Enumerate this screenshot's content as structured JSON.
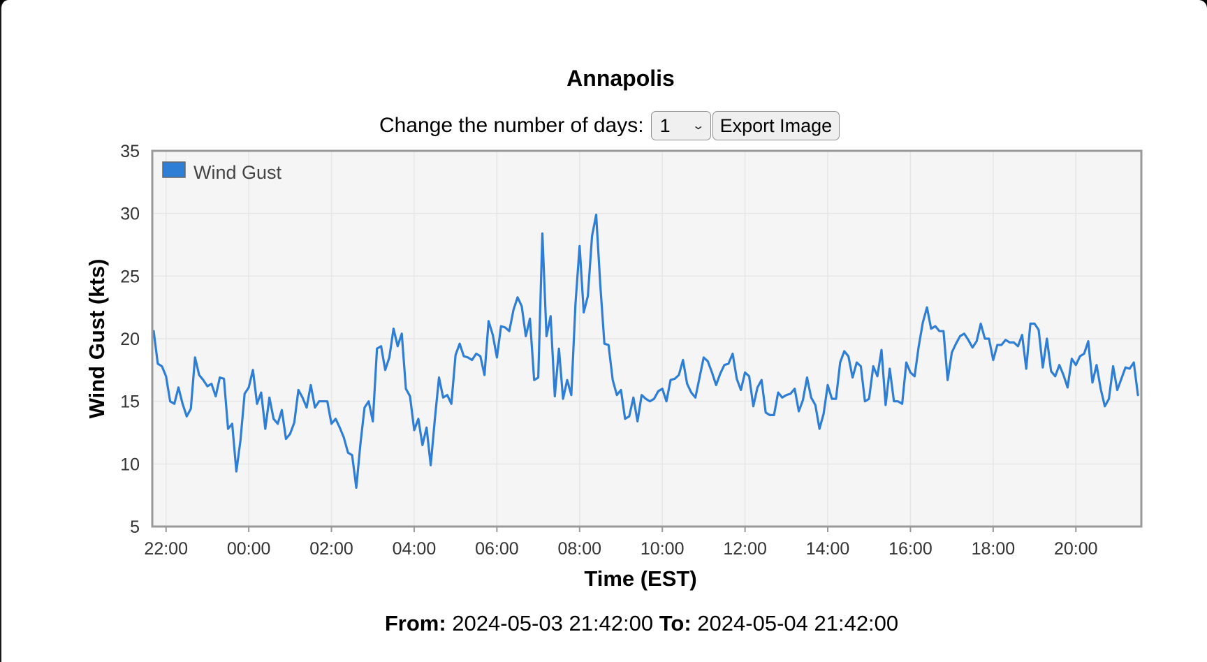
{
  "title": "Annapolis",
  "controls": {
    "days_label": "Change the number of days:",
    "days_value": "1",
    "export_label": "Export Image"
  },
  "footer": {
    "from_label": "From:",
    "from_value": "2024-05-03 21:42:00",
    "to_label": "To:",
    "to_value": "2024-05-04 21:42:00"
  },
  "colors": {
    "series": "#2e7ed6",
    "plot_background": "#f5f5f5",
    "plot_border": "#999999",
    "grid": "#e6e6e6"
  },
  "chart_data": {
    "type": "line",
    "xlabel": "Time (EST)",
    "ylabel": "Wind Gust (kts)",
    "ylim": [
      5,
      35
    ],
    "yticks": [
      5,
      10,
      15,
      20,
      25,
      30,
      35
    ],
    "xlim_hours": [
      21.667,
      45.583
    ],
    "xticks": [
      {
        "hour": 22,
        "label": "22:00"
      },
      {
        "hour": 24,
        "label": "00:00"
      },
      {
        "hour": 26,
        "label": "02:00"
      },
      {
        "hour": 28,
        "label": "04:00"
      },
      {
        "hour": 30,
        "label": "06:00"
      },
      {
        "hour": 32,
        "label": "08:00"
      },
      {
        "hour": 34,
        "label": "10:00"
      },
      {
        "hour": 36,
        "label": "12:00"
      },
      {
        "hour": 38,
        "label": "14:00"
      },
      {
        "hour": 40,
        "label": "16:00"
      },
      {
        "hour": 42,
        "label": "18:00"
      },
      {
        "hour": 44,
        "label": "20:00"
      }
    ],
    "grid": true,
    "legend_position": "top-left",
    "series": [
      {
        "name": "Wind Gust",
        "x": [
          21.7,
          21.8,
          21.9,
          22.0,
          22.1,
          22.2,
          22.3,
          22.4,
          22.5,
          22.6,
          22.7,
          22.8,
          22.9,
          23.0,
          23.1,
          23.2,
          23.3,
          23.4,
          23.5,
          23.6,
          23.7,
          23.8,
          23.9,
          24.0,
          24.1,
          24.2,
          24.3,
          24.4,
          24.5,
          24.6,
          24.7,
          24.8,
          24.9,
          25.0,
          25.1,
          25.2,
          25.3,
          25.4,
          25.5,
          25.6,
          25.7,
          25.8,
          25.9,
          26.0,
          26.1,
          26.2,
          26.3,
          26.4,
          26.5,
          26.6,
          26.7,
          26.8,
          26.9,
          27.0,
          27.1,
          27.2,
          27.3,
          27.4,
          27.5,
          27.6,
          27.7,
          27.8,
          27.9,
          28.0,
          28.1,
          28.2,
          28.3,
          28.4,
          28.5,
          28.6,
          28.7,
          28.8,
          28.9,
          29.0,
          29.1,
          29.2,
          29.3,
          29.4,
          29.5,
          29.6,
          29.7,
          29.8,
          29.9,
          30.0,
          30.1,
          30.2,
          30.3,
          30.4,
          30.5,
          30.6,
          30.7,
          30.8,
          30.9,
          31.0,
          31.1,
          31.2,
          31.3,
          31.4,
          31.5,
          31.6,
          31.7,
          31.8,
          31.9,
          32.0,
          32.1,
          32.2,
          32.3,
          32.4,
          32.5,
          32.6,
          32.7,
          32.8,
          32.9,
          33.0,
          33.1,
          33.2,
          33.3,
          33.4,
          33.5,
          33.6,
          33.7,
          33.8,
          33.9,
          34.0,
          34.1,
          34.2,
          34.3,
          34.4,
          34.5,
          34.6,
          34.7,
          34.8,
          34.9,
          35.0,
          35.1,
          35.2,
          35.3,
          35.4,
          35.5,
          35.6,
          35.7,
          35.8,
          35.9,
          36.0,
          36.1,
          36.2,
          36.3,
          36.4,
          36.5,
          36.6,
          36.7,
          36.8,
          36.9,
          37.0,
          37.1,
          37.2,
          37.3,
          37.4,
          37.5,
          37.6,
          37.7,
          37.8,
          37.9,
          38.0,
          38.1,
          38.2,
          38.3,
          38.4,
          38.5,
          38.6,
          38.7,
          38.8,
          38.9,
          39.0,
          39.1,
          39.2,
          39.3,
          39.4,
          39.5,
          39.6,
          39.7,
          39.8,
          39.9,
          40.0,
          40.1,
          40.2,
          40.3,
          40.4,
          40.5,
          40.6,
          40.7,
          40.8,
          40.9,
          41.0,
          41.1,
          41.2,
          41.3,
          41.4,
          41.5,
          41.6,
          41.7,
          41.8,
          41.9,
          42.0,
          42.1,
          42.2,
          42.3,
          42.4,
          42.5,
          42.6,
          42.7,
          42.8,
          42.9,
          43.0,
          43.1,
          43.2,
          43.3,
          43.4,
          43.5,
          43.6,
          43.7,
          43.8,
          43.9,
          44.0,
          44.1,
          44.2,
          44.3,
          44.4,
          44.5,
          44.6,
          44.7,
          44.8,
          44.9,
          45.0,
          45.1,
          45.2,
          45.3,
          45.4,
          45.5
        ],
        "values": [
          20.6,
          18.0,
          17.8,
          17.0,
          15.0,
          14.8,
          16.1,
          14.8,
          13.8,
          14.4,
          18.5,
          17.1,
          16.7,
          16.2,
          16.4,
          15.4,
          16.9,
          16.8,
          12.8,
          13.2,
          9.4,
          11.9,
          15.6,
          16.1,
          17.5,
          14.8,
          15.7,
          12.8,
          15.3,
          13.6,
          13.2,
          14.3,
          12.0,
          12.4,
          13.3,
          15.9,
          15.3,
          14.5,
          16.3,
          14.5,
          15.0,
          15.0,
          15.0,
          13.2,
          13.6,
          12.9,
          12.1,
          10.9,
          10.7,
          8.1,
          11.6,
          14.5,
          15.0,
          13.4,
          19.2,
          19.4,
          17.5,
          18.5,
          20.8,
          19.4,
          20.4,
          16.0,
          15.4,
          12.7,
          13.6,
          11.5,
          12.9,
          9.9,
          13.6,
          16.9,
          15.3,
          15.5,
          14.8,
          18.7,
          19.6,
          18.6,
          18.5,
          18.3,
          18.8,
          18.6,
          17.1,
          21.4,
          20.3,
          18.5,
          21.0,
          20.9,
          20.6,
          22.3,
          23.3,
          22.6,
          20.2,
          21.6,
          16.7,
          16.9,
          28.4,
          20.2,
          21.8,
          15.4,
          19.2,
          15.2,
          16.7,
          15.5,
          22.8,
          27.4,
          22.1,
          23.4,
          28.2,
          29.9,
          24.3,
          19.6,
          19.5,
          16.7,
          15.5,
          15.9,
          13.6,
          13.8,
          15.3,
          13.4,
          15.5,
          15.2,
          15.0,
          15.2,
          15.8,
          16.0,
          15.0,
          16.7,
          16.8,
          17.1,
          18.3,
          16.4,
          15.7,
          15.3,
          16.9,
          18.5,
          18.2,
          17.3,
          16.3,
          17.2,
          17.9,
          18.0,
          18.8,
          16.8,
          15.9,
          17.3,
          17.0,
          14.6,
          16.1,
          16.7,
          14.1,
          13.9,
          13.9,
          15.7,
          15.3,
          15.5,
          15.6,
          16.0,
          14.2,
          15.1,
          16.9,
          15.3,
          14.7,
          12.8,
          14.0,
          16.3,
          15.2,
          15.2,
          18.1,
          19.0,
          18.6,
          16.9,
          18.1,
          17.8,
          15.0,
          15.2,
          17.8,
          17.0,
          19.1,
          14.7,
          17.6,
          15.0,
          15.0,
          14.8,
          18.1,
          17.3,
          17.0,
          19.4,
          21.3,
          22.5,
          20.8,
          21.0,
          20.6,
          20.6,
          16.7,
          18.9,
          19.6,
          20.2,
          20.4,
          19.9,
          19.3,
          19.8,
          21.2,
          20.0,
          20.0,
          18.3,
          19.5,
          19.5,
          19.9,
          19.7,
          19.7,
          19.4,
          20.3,
          17.6,
          21.2,
          21.2,
          20.7,
          17.7,
          20.0,
          17.4,
          17.0,
          17.9,
          17.1,
          16.1,
          18.4,
          17.9,
          18.6,
          18.8,
          19.8,
          16.5,
          17.9,
          16.0,
          14.6,
          15.2,
          17.8,
          15.9,
          16.8,
          17.7,
          17.6,
          18.1,
          15.5
        ]
      }
    ]
  }
}
